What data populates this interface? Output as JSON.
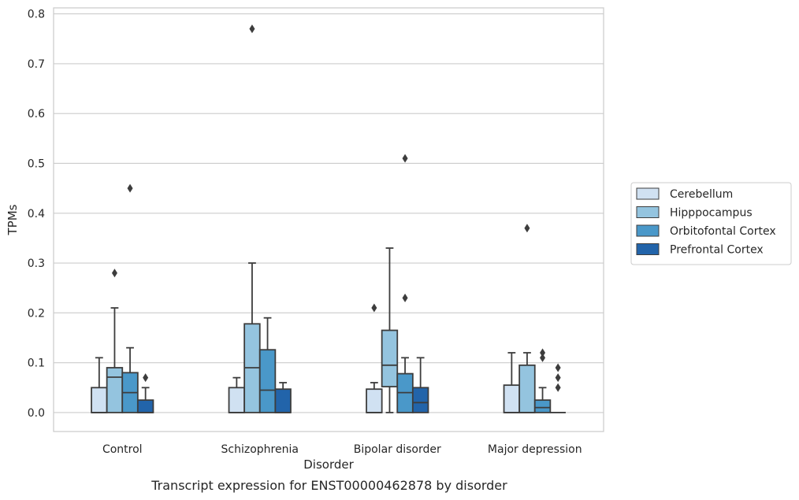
{
  "chart_data": {
    "type": "boxplot",
    "xlabel": "Disorder",
    "ylabel": "TPMs",
    "caption": "Transcript expression for ENST00000462878 by disorder",
    "ylim": [
      -0.038,
      0.812
    ],
    "yticks": [
      "0.0",
      "0.1",
      "0.2",
      "0.3",
      "0.4",
      "0.5",
      "0.6",
      "0.7",
      "0.8"
    ],
    "ytick_values": [
      0.0,
      0.1,
      0.2,
      0.3,
      0.4,
      0.5,
      0.6,
      0.7,
      0.8
    ],
    "grid": true,
    "legend_position": "right",
    "categories": [
      "Control",
      "Schizophrenia",
      "Bipolar disorder",
      "Major depression"
    ],
    "series": [
      {
        "name": "Cerebellum",
        "color": "#d0e1f2",
        "boxes": [
          {
            "whisker_low": 0.0,
            "q1": 0.0,
            "median": 0.0,
            "q3": 0.05,
            "whisker_high": 0.11,
            "outliers": []
          },
          {
            "whisker_low": 0.0,
            "q1": 0.0,
            "median": 0.0,
            "q3": 0.05,
            "whisker_high": 0.07,
            "outliers": []
          },
          {
            "whisker_low": 0.0,
            "q1": 0.0,
            "median": 0.0,
            "q3": 0.047,
            "whisker_high": 0.06,
            "outliers": [
              0.21
            ]
          },
          {
            "whisker_low": 0.0,
            "q1": 0.0,
            "median": 0.0,
            "q3": 0.055,
            "whisker_high": 0.12,
            "outliers": []
          }
        ]
      },
      {
        "name": "Hipppocampus",
        "color": "#94c4df",
        "boxes": [
          {
            "whisker_low": 0.0,
            "q1": 0.0,
            "median": 0.071,
            "q3": 0.09,
            "whisker_high": 0.21,
            "outliers": [
              0.28
            ]
          },
          {
            "whisker_low": 0.0,
            "q1": 0.0,
            "median": 0.09,
            "q3": 0.178,
            "whisker_high": 0.3,
            "outliers": [
              0.77
            ]
          },
          {
            "whisker_low": 0.0,
            "q1": 0.052,
            "median": 0.095,
            "q3": 0.165,
            "whisker_high": 0.33,
            "outliers": []
          },
          {
            "whisker_low": 0.0,
            "q1": 0.0,
            "median": 0.0,
            "q3": 0.095,
            "whisker_high": 0.12,
            "outliers": [
              0.37
            ]
          }
        ]
      },
      {
        "name": "Orbitofontal Cortex",
        "color": "#4a98c9",
        "boxes": [
          {
            "whisker_low": 0.0,
            "q1": 0.0,
            "median": 0.04,
            "q3": 0.08,
            "whisker_high": 0.13,
            "outliers": [
              0.45
            ]
          },
          {
            "whisker_low": 0.0,
            "q1": 0.0,
            "median": 0.045,
            "q3": 0.126,
            "whisker_high": 0.19,
            "outliers": []
          },
          {
            "whisker_low": 0.0,
            "q1": 0.0,
            "median": 0.04,
            "q3": 0.078,
            "whisker_high": 0.11,
            "outliers": [
              0.23,
              0.51
            ]
          },
          {
            "whisker_low": 0.0,
            "q1": 0.0,
            "median": 0.01,
            "q3": 0.025,
            "whisker_high": 0.05,
            "outliers": [
              0.11,
              0.12
            ]
          }
        ]
      },
      {
        "name": "Prefrontal Cortex",
        "color": "#2264aa",
        "boxes": [
          {
            "whisker_low": 0.0,
            "q1": 0.0,
            "median": 0.0,
            "q3": 0.025,
            "whisker_high": 0.05,
            "outliers": [
              0.07
            ]
          },
          {
            "whisker_low": 0.0,
            "q1": 0.0,
            "median": 0.0,
            "q3": 0.047,
            "whisker_high": 0.06,
            "outliers": []
          },
          {
            "whisker_low": 0.0,
            "q1": 0.0,
            "median": 0.02,
            "q3": 0.05,
            "whisker_high": 0.11,
            "outliers": []
          },
          {
            "whisker_low": 0.0,
            "q1": 0.0,
            "median": 0.0,
            "q3": 0.0,
            "whisker_high": 0.0,
            "outliers": [
              0.05,
              0.07,
              0.09
            ]
          }
        ]
      }
    ]
  }
}
